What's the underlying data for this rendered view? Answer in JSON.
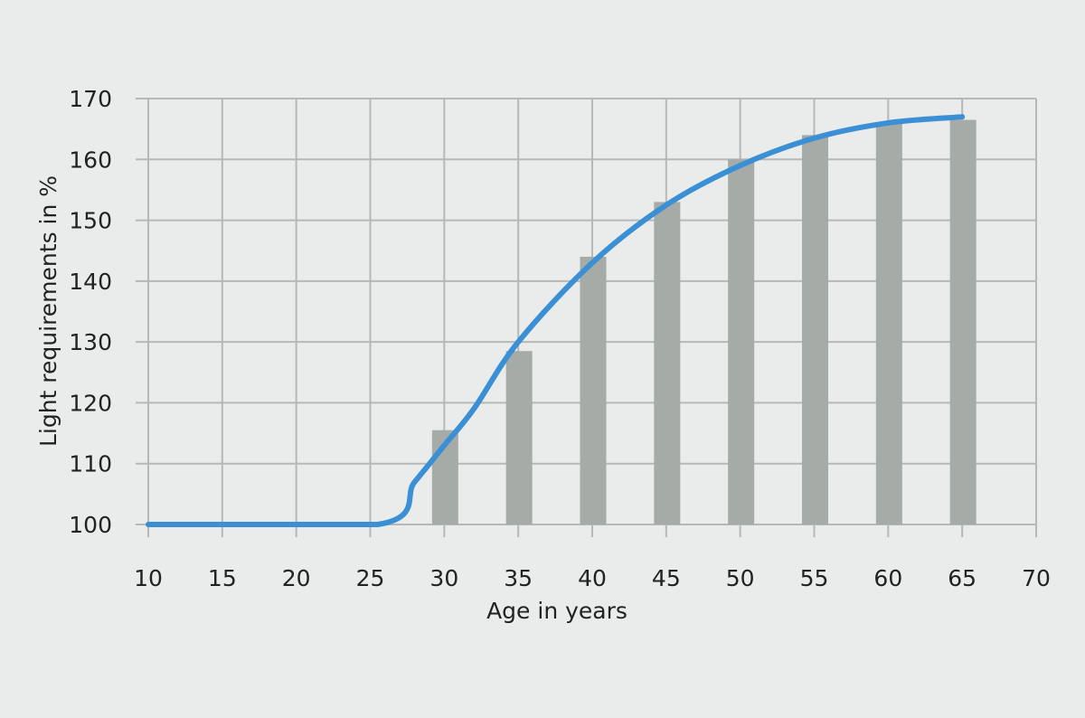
{
  "chart_data": {
    "type": "bar",
    "xlabel": "Age in years",
    "ylabel": "Light requirements in %",
    "xlim": [
      10,
      70
    ],
    "ylim": [
      100,
      170
    ],
    "x_ticks": [
      10,
      15,
      20,
      25,
      30,
      35,
      40,
      45,
      50,
      55,
      60,
      65,
      70
    ],
    "y_ticks": [
      100,
      110,
      120,
      130,
      140,
      150,
      160,
      170
    ],
    "grid": true,
    "legend": "none",
    "bars": {
      "x": [
        30,
        35,
        40,
        45,
        50,
        55,
        60,
        65
      ],
      "values": [
        115.5,
        128.5,
        144,
        153,
        160,
        164,
        166,
        166.5
      ],
      "color": "#a5aba7"
    },
    "curve": {
      "x": [
        10,
        25.5,
        28,
        30,
        32,
        35,
        40,
        45,
        50,
        55,
        60,
        65
      ],
      "values": [
        100,
        100,
        107,
        113,
        119,
        130,
        143,
        152.5,
        159,
        163.5,
        166,
        167
      ],
      "color": "#3b8fd4"
    },
    "colors": {
      "background": "#e9ecea",
      "plot_background": "#e9ecea",
      "grid": "#b5b8b6"
    }
  }
}
